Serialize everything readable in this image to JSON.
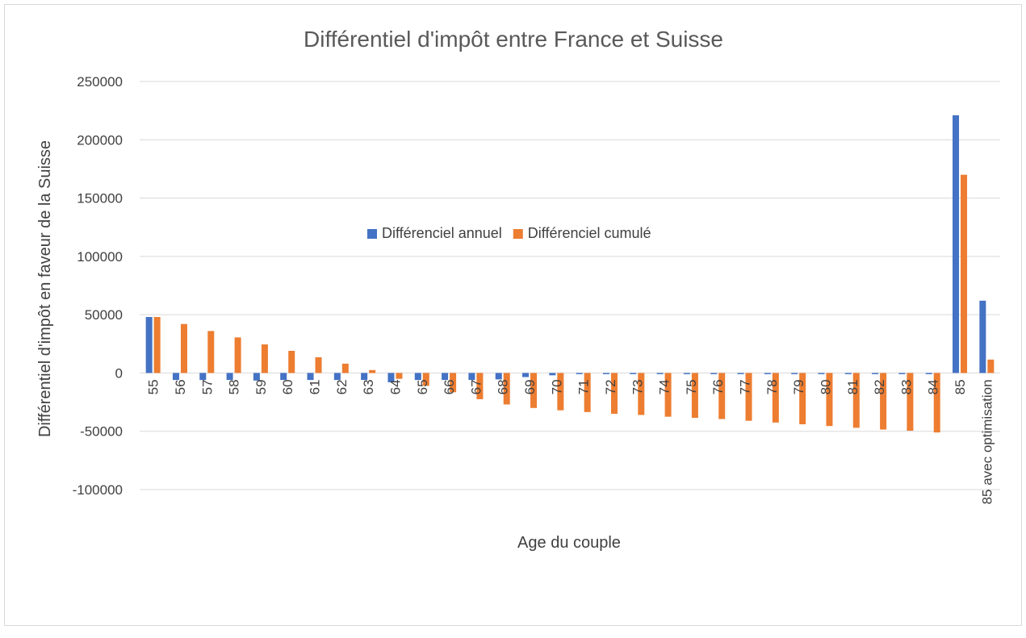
{
  "chart_data": {
    "type": "bar",
    "title": "Différentiel d'impôt entre France et Suisse",
    "xlabel": "Age du couple",
    "ylabel": "Différentiel d'impôt en faveur de la Suisse",
    "ylim": [
      -100000,
      250000
    ],
    "ytick_step": 50000,
    "grid": true,
    "legend_position": "center",
    "categories": [
      "55",
      "56",
      "57",
      "58",
      "59",
      "60",
      "61",
      "62",
      "63",
      "64",
      "65",
      "66",
      "67",
      "68",
      "69",
      "70",
      "71",
      "72",
      "73",
      "74",
      "75",
      "76",
      "77",
      "78",
      "79",
      "80",
      "81",
      "82",
      "83",
      "84",
      "85",
      "85 avec optimisation"
    ],
    "series": [
      {
        "name": "Différenciel annuel",
        "color": "#4472c4",
        "values": [
          48000,
          -6000,
          -6000,
          -6000,
          -6500,
          -6000,
          -6000,
          -6000,
          -6000,
          -8000,
          -6000,
          -6000,
          -6000,
          -5500,
          -3500,
          -2000,
          -1000,
          -1000,
          -1000,
          -1000,
          -1000,
          -1000,
          -1000,
          -1000,
          -1000,
          -1000,
          -1000,
          -1000,
          -1000,
          -1000,
          221000,
          62000
        ]
      },
      {
        "name": "Différenciel cumulé",
        "color": "#ed7d31",
        "values": [
          48000,
          42000,
          36000,
          30500,
          24500,
          19000,
          13500,
          8000,
          2500,
          -5000,
          -11000,
          -16500,
          -22500,
          -27000,
          -30000,
          -32000,
          -33500,
          -35000,
          -36000,
          -37500,
          -38500,
          -39500,
          -41000,
          -42500,
          -44000,
          -45500,
          -47000,
          -48500,
          -49500,
          -51000,
          170000,
          11500
        ]
      }
    ]
  }
}
